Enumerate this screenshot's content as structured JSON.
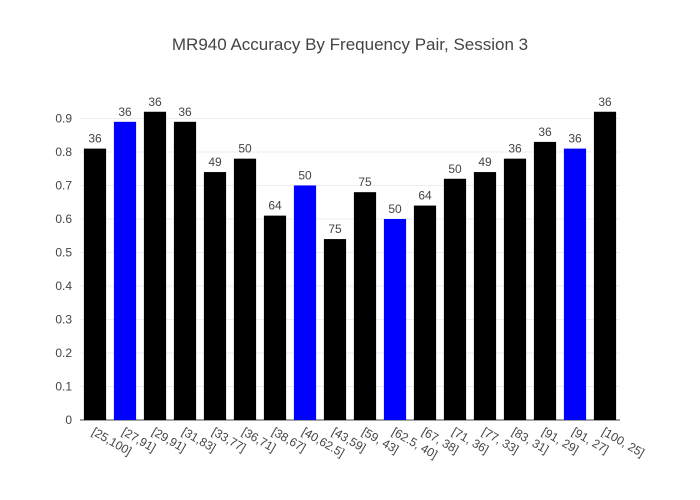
{
  "chart_data": {
    "type": "bar",
    "title": "MR940 Accuracy By Frequency Pair, Session 3",
    "xlabel": "",
    "ylabel": "",
    "ylim": [
      0,
      0.97
    ],
    "yticks": [
      "0",
      "0.1",
      "0.2",
      "0.3",
      "0.4",
      "0.5",
      "0.6",
      "0.7",
      "0.8",
      "0.9"
    ],
    "grid": true,
    "legend": "none",
    "categories": [
      "[25,100]",
      "[27,91]",
      "[29,91]",
      "[31,83]",
      "[33,77]",
      "[36,71]",
      "[38,67]",
      "[40,62.5]",
      "[43,59]",
      "[59, 43]",
      "[62.5, 40]",
      "[67, 38]",
      "[71, 36]",
      "[77, 33]",
      "[83, 31]",
      "[91, 29]",
      "[91, 27]",
      "[100, 25]"
    ],
    "values": [
      0.81,
      0.89,
      0.92,
      0.89,
      0.74,
      0.78,
      0.61,
      0.7,
      0.54,
      0.68,
      0.6,
      0.64,
      0.72,
      0.74,
      0.78,
      0.83,
      0.81,
      0.92
    ],
    "bar_labels": [
      "36",
      "36",
      "36",
      "36",
      "49",
      "50",
      "64",
      "50",
      "75",
      "75",
      "50",
      "64",
      "50",
      "49",
      "36",
      "36",
      "36",
      "36"
    ],
    "bar_colors": [
      "#000000",
      "#0000ff",
      "#000000",
      "#000000",
      "#000000",
      "#000000",
      "#000000",
      "#0000ff",
      "#000000",
      "#000000",
      "#0000ff",
      "#000000",
      "#000000",
      "#000000",
      "#000000",
      "#000000",
      "#0000ff",
      "#000000"
    ]
  }
}
